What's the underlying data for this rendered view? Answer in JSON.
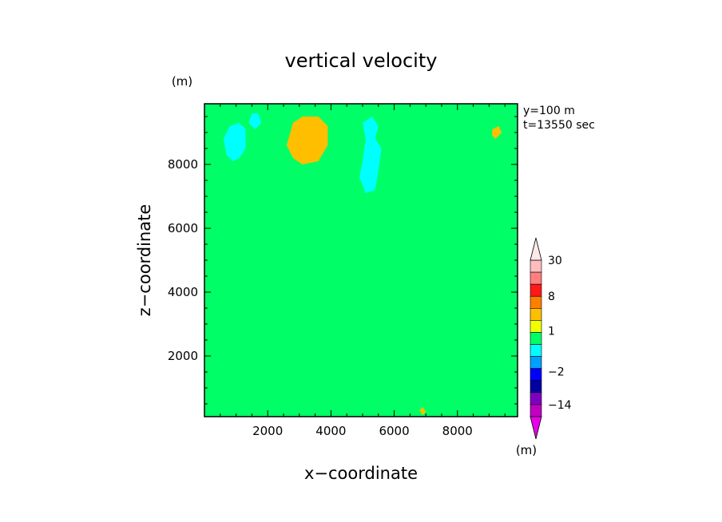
{
  "chart_data": {
    "type": "heatmap",
    "title": "vertical velocity",
    "xlabel": "x−coordinate",
    "ylabel": "z−coordinate",
    "x_unit": "(m)",
    "y_unit": "(m)",
    "xlim": [
      0,
      9900
    ],
    "ylim": [
      100,
      9900
    ],
    "x_ticks": [
      2000,
      4000,
      6000,
      8000
    ],
    "y_ticks": [
      2000,
      4000,
      6000,
      8000
    ],
    "x_tick_labels": [
      "2000",
      "4000",
      "6000",
      "8000"
    ],
    "y_tick_labels": [
      "2000",
      "4000",
      "6000",
      "8000"
    ],
    "info_lines": [
      "y=100 m",
      "t=13550 sec"
    ],
    "field_levels": {
      "background": 0,
      "regions": [
        {
          "level": 0.5,
          "polygon": [
            [
              400,
              6500
            ],
            [
              1200,
              6400
            ],
            [
              2000,
              6200
            ],
            [
              2600,
              6000
            ],
            [
              3000,
              5600
            ],
            [
              3400,
              5000
            ],
            [
              3800,
              4600
            ],
            [
              4200,
              4200
            ],
            [
              4400,
              3600
            ],
            [
              4800,
              3000
            ],
            [
              5200,
              2400
            ],
            [
              5600,
              2000
            ],
            [
              6000,
              2400
            ],
            [
              6200,
              3200
            ],
            [
              6800,
              3800
            ],
            [
              7600,
              4400
            ],
            [
              8400,
              4200
            ],
            [
              9000,
              3800
            ],
            [
              9600,
              3400
            ],
            [
              9900,
              3000
            ],
            [
              9900,
              1600
            ],
            [
              9400,
              1000
            ],
            [
              8600,
              700
            ],
            [
              7800,
              900
            ],
            [
              7200,
              1600
            ],
            [
              6400,
              900
            ],
            [
              5600,
              600
            ],
            [
              5000,
              900
            ],
            [
              4400,
              1200
            ],
            [
              3800,
              800
            ],
            [
              3200,
              400
            ],
            [
              2600,
              500
            ],
            [
              2200,
              900
            ],
            [
              1600,
              1300
            ],
            [
              1000,
              1700
            ],
            [
              400,
              2000
            ],
            [
              0,
              2200
            ],
            [
              0,
              4200
            ],
            [
              300,
              5000
            ],
            [
              200,
              6000
            ]
          ]
        },
        {
          "level": 0.5,
          "polygon": [
            [
              2300,
              6400
            ],
            [
              2500,
              7200
            ],
            [
              2400,
              8200
            ],
            [
              2600,
              9500
            ],
            [
              3000,
              9900
            ],
            [
              4000,
              9900
            ],
            [
              4200,
              9200
            ],
            [
              3900,
              8400
            ],
            [
              3700,
              7600
            ],
            [
              3500,
              6800
            ],
            [
              3200,
              6200
            ],
            [
              2800,
              6000
            ]
          ]
        },
        {
          "level": 0.5,
          "polygon": [
            [
              4600,
              6000
            ],
            [
              5200,
              6600
            ],
            [
              5700,
              7200
            ],
            [
              6300,
              7800
            ],
            [
              6500,
              8600
            ],
            [
              6200,
              9300
            ],
            [
              6700,
              9900
            ],
            [
              7600,
              9900
            ],
            [
              8100,
              9300
            ],
            [
              8800,
              9200
            ],
            [
              9600,
              9400
            ],
            [
              9900,
              9000
            ],
            [
              9900,
              8400
            ],
            [
              9300,
              8000
            ],
            [
              8900,
              7400
            ],
            [
              8400,
              6900
            ],
            [
              7800,
              6400
            ],
            [
              7200,
              5900
            ],
            [
              6600,
              5600
            ],
            [
              5800,
              5300
            ],
            [
              5000,
              5200
            ],
            [
              4500,
              5500
            ]
          ]
        },
        {
          "level": 0.5,
          "polygon": [
            [
              400,
              1900
            ],
            [
              700,
              2400
            ],
            [
              1100,
              2900
            ],
            [
              1600,
              3200
            ],
            [
              2000,
              3600
            ],
            [
              2200,
              4100
            ],
            [
              2000,
              4600
            ],
            [
              1500,
              4900
            ],
            [
              900,
              5100
            ],
            [
              400,
              5200
            ],
            [
              0,
              5000
            ],
            [
              0,
              2300
            ]
          ]
        },
        {
          "level": 0.5,
          "polygon": [
            [
              6700,
              300
            ],
            [
              7300,
              200
            ],
            [
              7800,
              400
            ],
            [
              8000,
              900
            ],
            [
              7600,
              1300
            ],
            [
              7000,
              1200
            ],
            [
              6700,
              800
            ]
          ]
        },
        {
          "level": 0.5,
          "polygon": [
            [
              8800,
              3200
            ],
            [
              9500,
              3600
            ],
            [
              9900,
              4200
            ],
            [
              9900,
              5600
            ],
            [
              9500,
              5400
            ],
            [
              9100,
              4800
            ],
            [
              8800,
              4000
            ]
          ]
        },
        {
          "level": 0.5,
          "polygon": [
            [
              4700,
              2600
            ],
            [
              5100,
              3000
            ],
            [
              5400,
              3600
            ],
            [
              5200,
              4400
            ],
            [
              4800,
              4800
            ],
            [
              4400,
              4400
            ],
            [
              4500,
              3400
            ]
          ]
        },
        {
          "level": 0.5,
          "polygon": [
            [
              7900,
              2400
            ],
            [
              8300,
              2800
            ],
            [
              8600,
              3400
            ],
            [
              8300,
              3900
            ],
            [
              7800,
              3800
            ],
            [
              7500,
              3200
            ],
            [
              7600,
              2700
            ]
          ]
        },
        {
          "level": 0.5,
          "polygon": [
            [
              9000,
              7400
            ],
            [
              9500,
              7600
            ],
            [
              9900,
              8000
            ],
            [
              9900,
              8500
            ],
            [
              9400,
              8300
            ],
            [
              9000,
              7900
            ]
          ]
        },
        {
          "level": 2,
          "polygon": [
            [
              2600,
              8600
            ],
            [
              2800,
              9300
            ],
            [
              3100,
              9500
            ],
            [
              3600,
              9500
            ],
            [
              3900,
              9200
            ],
            [
              3900,
              8600
            ],
            [
              3600,
              8100
            ],
            [
              3100,
              8000
            ],
            [
              2800,
              8200
            ]
          ]
        },
        {
          "level": 2,
          "polygon": [
            [
              9100,
              9100
            ],
            [
              9300,
              9200
            ],
            [
              9400,
              9000
            ],
            [
              9200,
              8800
            ],
            [
              9100,
              8900
            ]
          ]
        },
        {
          "level": 2,
          "polygon": [
            [
              6800,
              300
            ],
            [
              6900,
              400
            ],
            [
              7000,
              250
            ],
            [
              6900,
              150
            ]
          ]
        },
        {
          "level": -1,
          "polygon": [
            [
              600,
              8800
            ],
            [
              800,
              9200
            ],
            [
              1100,
              9300
            ],
            [
              1300,
              9100
            ],
            [
              1300,
              8500
            ],
            [
              1100,
              8200
            ],
            [
              900,
              8100
            ],
            [
              700,
              8300
            ]
          ]
        },
        {
          "level": -1,
          "polygon": [
            [
              1400,
              9300
            ],
            [
              1500,
              9600
            ],
            [
              1700,
              9600
            ],
            [
              1800,
              9300
            ],
            [
              1600,
              9100
            ]
          ]
        },
        {
          "level": -1,
          "polygon": [
            [
              5000,
              8100
            ],
            [
              5100,
              8800
            ],
            [
              5000,
              9300
            ],
            [
              5300,
              9500
            ],
            [
              5500,
              9200
            ],
            [
              5400,
              8800
            ],
            [
              5600,
              8500
            ],
            [
              5500,
              7800
            ],
            [
              5400,
              7200
            ],
            [
              5100,
              7100
            ],
            [
              4900,
              7600
            ]
          ]
        }
      ]
    },
    "colorbar": {
      "unit": "(m)",
      "tick_labels": [
        "30",
        "8",
        "1",
        "−2",
        "−14"
      ],
      "tick_values": [
        30,
        8,
        1,
        -2,
        -14
      ],
      "bands": [
        {
          "lower": 30,
          "upper": null,
          "color": "#ffe8e8"
        },
        {
          "lower": 20,
          "upper": 30,
          "color": "#ffbdbd"
        },
        {
          "lower": 14,
          "upper": 20,
          "color": "#ff7f7f"
        },
        {
          "lower": 8,
          "upper": 14,
          "color": "#ff1a1a"
        },
        {
          "lower": 4,
          "upper": 8,
          "color": "#ff7f00"
        },
        {
          "lower": 2,
          "upper": 4,
          "color": "#ffbf00"
        },
        {
          "lower": 1,
          "upper": 2,
          "color": "#f0ff00"
        },
        {
          "lower": 0,
          "upper": 1,
          "color": "#00ff66"
        },
        {
          "lower": -1,
          "upper": 0,
          "color": "#00ffff"
        },
        {
          "lower": -2,
          "upper": -1,
          "color": "#00a0ff"
        },
        {
          "lower": -4,
          "upper": -2,
          "color": "#0000ff"
        },
        {
          "lower": -8,
          "upper": -4,
          "color": "#0000a0"
        },
        {
          "lower": -14,
          "upper": -8,
          "color": "#8000c0"
        },
        {
          "lower": -20,
          "upper": -14,
          "color": "#c000c0"
        },
        {
          "lower": null,
          "upper": -20,
          "color": "#e800e8"
        }
      ]
    }
  }
}
